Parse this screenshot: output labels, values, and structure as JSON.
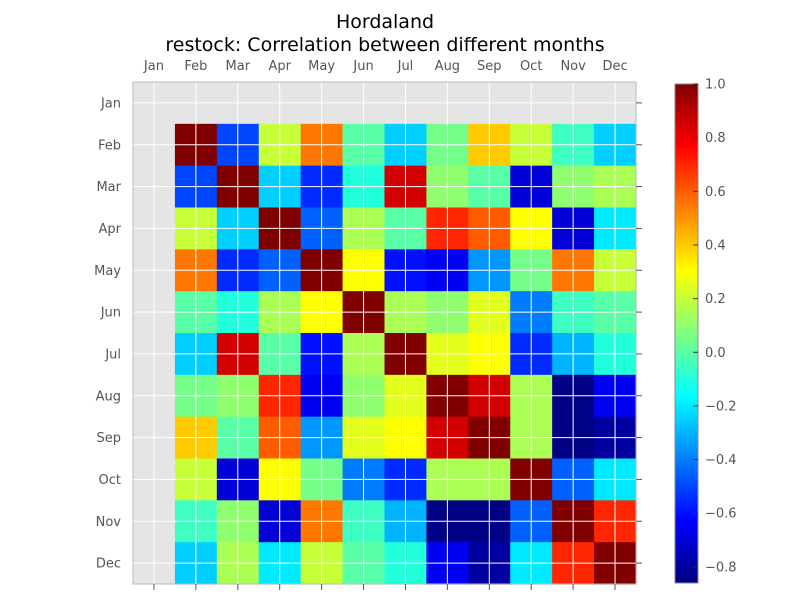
{
  "chart_data": {
    "type": "heatmap",
    "title": "Hordaland",
    "subtitle": "restock: Correlation between different months",
    "x_labels": [
      "Jan",
      "Feb",
      "Mar",
      "Apr",
      "May",
      "Jun",
      "Jul",
      "Aug",
      "Sep",
      "Oct",
      "Nov",
      "Dec"
    ],
    "y_labels": [
      "Jan",
      "Feb",
      "Mar",
      "Apr",
      "May",
      "Jun",
      "Jul",
      "Aug",
      "Sep",
      "Oct",
      "Nov",
      "Dec"
    ],
    "values": [
      [
        null,
        null,
        null,
        null,
        null,
        null,
        null,
        null,
        null,
        null,
        null,
        null
      ],
      [
        null,
        1.0,
        -0.5,
        0.2,
        0.55,
        0.0,
        -0.25,
        0.05,
        0.4,
        0.2,
        -0.05,
        -0.25
      ],
      [
        null,
        -0.5,
        1.0,
        -0.25,
        -0.55,
        -0.1,
        0.85,
        0.1,
        0.0,
        -0.7,
        0.1,
        0.15
      ],
      [
        null,
        0.2,
        -0.25,
        1.0,
        -0.45,
        0.15,
        0.0,
        0.7,
        0.6,
        0.3,
        -0.7,
        -0.2
      ],
      [
        null,
        0.55,
        -0.55,
        -0.45,
        1.0,
        0.3,
        -0.6,
        -0.65,
        -0.35,
        0.05,
        0.55,
        0.2
      ],
      [
        null,
        0.0,
        -0.1,
        0.15,
        0.3,
        1.0,
        0.15,
        0.1,
        0.25,
        -0.4,
        -0.05,
        0.0
      ],
      [
        null,
        -0.25,
        0.85,
        0.0,
        -0.6,
        0.15,
        1.0,
        0.25,
        0.3,
        -0.55,
        -0.3,
        -0.1
      ],
      [
        null,
        0.05,
        0.1,
        0.7,
        -0.65,
        0.1,
        0.25,
        1.0,
        0.85,
        0.15,
        -0.85,
        -0.65
      ],
      [
        null,
        0.4,
        0.0,
        0.6,
        -0.35,
        0.25,
        0.3,
        0.85,
        1.0,
        0.15,
        -0.85,
        -0.8
      ],
      [
        null,
        0.2,
        -0.7,
        0.3,
        0.05,
        -0.4,
        -0.55,
        0.15,
        0.15,
        1.0,
        -0.45,
        -0.2
      ],
      [
        null,
        -0.05,
        0.1,
        -0.7,
        0.55,
        -0.05,
        -0.3,
        -0.85,
        -0.85,
        -0.45,
        1.0,
        0.7
      ],
      [
        null,
        -0.25,
        0.15,
        -0.2,
        0.2,
        0.0,
        -0.1,
        -0.65,
        -0.8,
        -0.2,
        0.7,
        1.0
      ]
    ],
    "colorbar": {
      "min": -0.86,
      "max": 1.0,
      "ticks": [
        1.0,
        0.8,
        0.6,
        0.4,
        0.2,
        0.0,
        -0.2,
        -0.4,
        -0.6,
        -0.8
      ],
      "tick_labels": [
        "1.0",
        "0.8",
        "0.6",
        "0.4",
        "0.2",
        "0.0",
        "−0.2",
        "−0.4",
        "−0.6",
        "−0.8"
      ],
      "colormap": "jet"
    },
    "missing_color": "#e5e5e5",
    "grid": true,
    "x_axis_position": "top"
  }
}
